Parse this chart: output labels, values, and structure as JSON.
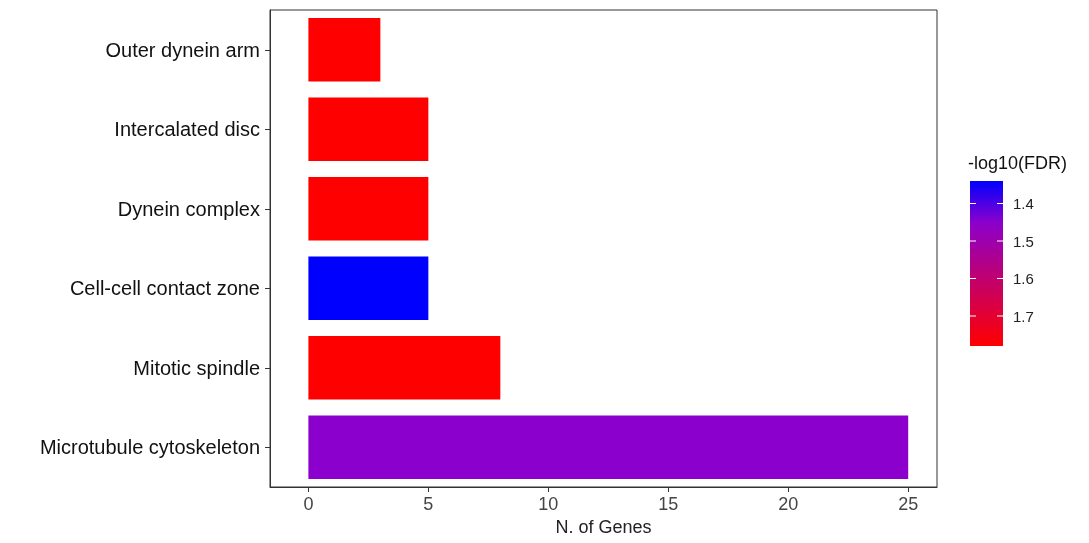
{
  "chart_data": {
    "type": "bar",
    "orientation": "horizontal",
    "xlabel": "N. of Genes",
    "clabel": "-log10(FDR)",
    "categories": [
      "Outer dynein arm",
      "Intercalated disc",
      "Dynein complex",
      "Cell-cell contact zone",
      "Mitotic spindle",
      "Microtubule cytoskeleton"
    ],
    "values": [
      3,
      5,
      5,
      5,
      8,
      25
    ],
    "cvalues": [
      1.78,
      1.78,
      1.78,
      1.34,
      1.78,
      1.45
    ],
    "colors": [
      "#ff0000",
      "#ff0000",
      "#ff0000",
      "#0000ff",
      "#ff0000",
      "#8b00cc"
    ],
    "xlim": [
      -1.6,
      26.2
    ],
    "xticks": [
      0,
      5,
      10,
      15,
      20,
      25
    ],
    "clim": [
      1.34,
      1.78
    ],
    "cticks": [
      1.4,
      1.5,
      1.6,
      1.7
    ],
    "grid": false
  }
}
